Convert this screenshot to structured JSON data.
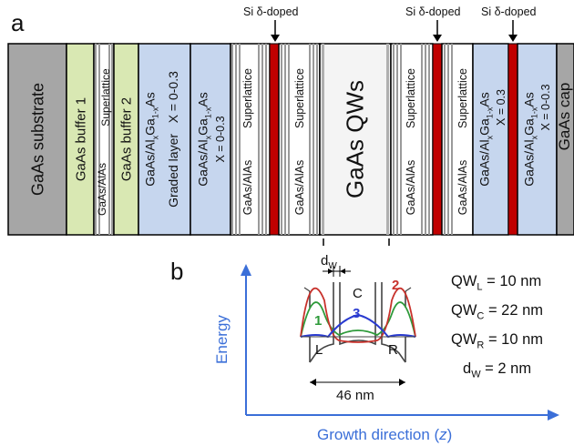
{
  "panel_a": {
    "letter": "a",
    "doped_label": "Si δ-doped",
    "layers": {
      "substrate": "GaAs substrate",
      "buffer1": "GaAs buffer 1",
      "sl1_left": "GaAs/AlAs",
      "sl1_right": "Superlattice",
      "buffer2": "GaAs buffer 2",
      "graded_line1_main": "GaAs/Al",
      "graded_line1_x": "x",
      "graded_line1_mid": "Ga",
      "graded_line1_sub": "1-x",
      "graded_line1_end": "As",
      "graded_line2": "Graded layer   X = 0-0.3",
      "algaas_main": "GaAs/Al",
      "algaas_x": "x",
      "algaas_mid": "Ga",
      "algaas_sub": "1-x",
      "algaas_end": "As",
      "algaas_x_value": "X = 0-0.3",
      "sl_superlattice": "Superlattice",
      "sl_gaas_alas": "GaAs/AlAs",
      "qws": "GaAs QWs",
      "algaas_right_x_value": "X = 0.3",
      "algaas_right2_x_value": "X = 0-0.3",
      "cap": "GaAs cap"
    }
  },
  "panel_b": {
    "letter": "b",
    "y_axis_label": "Energy",
    "x_axis_label_main": "Growth direction (",
    "x_axis_label_var": "z",
    "x_axis_label_close": ")",
    "width_label_main": "d",
    "width_label_sub": "W",
    "well_labels": {
      "left": "L",
      "center": "C",
      "right": "R"
    },
    "width_total": "46 nm",
    "state_labels": {
      "s1": "1",
      "s2": "2",
      "s3": "3"
    },
    "parameters": [
      {
        "main": "QW",
        "sub": "L",
        "rest": " = 10 nm"
      },
      {
        "main": "QW",
        "sub": "C",
        "rest": " = 22 nm"
      },
      {
        "main": "QW",
        "sub": "R",
        "rest": " = 10 nm"
      },
      {
        "main": "d",
        "sub": "W",
        "rest": " = 2 nm"
      }
    ],
    "colors": {
      "axis": "#3b6fd8",
      "state1": "#2e9a3a",
      "state2": "#c8322c",
      "state3": "#2a3bd0",
      "barrier": "#444444"
    }
  },
  "colors": {
    "gray": "#a6a6a6",
    "green": "#d9e8b3",
    "blue": "#c6d6ee",
    "red": "#c00000",
    "dark_red": "#8b0000",
    "white": "#ffffff"
  }
}
